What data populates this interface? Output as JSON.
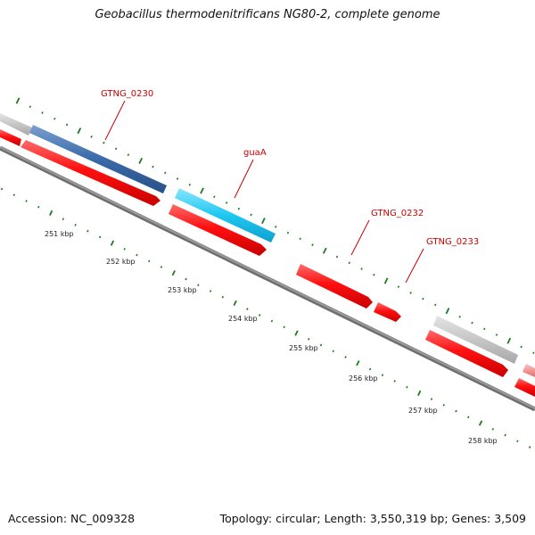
{
  "title": "Geobacillus thermodenitrificans NG80-2, complete genome",
  "footer": {
    "accession": "Accession: NC_009328",
    "stats": "Topology: circular; Length: 3,550,319 bp; Genes: 3,509"
  },
  "gene_labels": [
    {
      "id": "gtng-0230",
      "text": "GTNG_0230"
    },
    {
      "id": "guaa",
      "text": "guaA"
    },
    {
      "id": "gtng-0232",
      "text": "GTNG_0232"
    },
    {
      "id": "gtng-0233",
      "text": "GTNG_0233"
    }
  ],
  "scale_labels": [
    "251 kbp",
    "252 kbp",
    "253 kbp",
    "254 kbp",
    "255 kbp",
    "256 kbp",
    "257 kbp",
    "258 kbp"
  ],
  "colors": {
    "forward_gene": "#ff0000",
    "highlight_blue": "#3a6aa8",
    "highlight_cyan": "#1ec8f0",
    "grey_feature": "#c8c8c8",
    "pink_feature": "#f08080",
    "backbone": "#808080",
    "tick": "#1e7a1e",
    "label_red": "#cc0000"
  }
}
